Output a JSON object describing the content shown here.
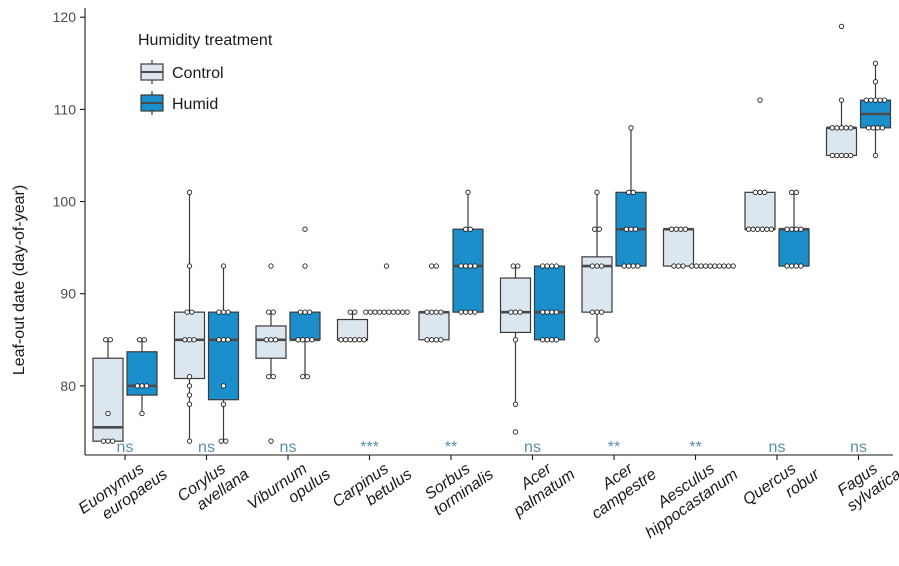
{
  "chart_data": {
    "type": "boxplot",
    "ylabel": "Leaf-out date (day-of-year)",
    "ylim": [
      72.5,
      121
    ],
    "yticks": [
      80,
      90,
      100,
      110,
      120
    ],
    "legend": {
      "title": "Humidity treatment",
      "position": "top-left",
      "items": [
        {
          "key": "control",
          "label": "Control",
          "color": "#dce6ee"
        },
        {
          "key": "humid",
          "label": "Humid",
          "color": "#1a8fcc"
        }
      ]
    },
    "colors": {
      "control": "#dce6ee",
      "humid": "#1a8fcc",
      "outline": "#3a3a3a",
      "median": "#4a4a4a",
      "significance": "#5b8fa8"
    },
    "categories": [
      {
        "line1": "Euonymus",
        "line2": "europaeus",
        "sig": "ns",
        "control": {
          "lower": 74,
          "q1": 74,
          "median": 75.5,
          "q3": 83,
          "upper": 85,
          "points": [
            74,
            74,
            74,
            77,
            85,
            85
          ]
        },
        "humid": {
          "lower": 77,
          "q1": 79,
          "median": 80,
          "q3": 83.7,
          "upper": 85,
          "points": [
            77,
            80,
            80,
            80,
            85,
            85
          ]
        }
      },
      {
        "line1": "Corylus",
        "line2": "avellana",
        "sig": "ns",
        "control": {
          "lower": 74,
          "q1": 80.8,
          "median": 85,
          "q3": 88,
          "upper": 101,
          "points": [
            74,
            78,
            79,
            80,
            81,
            85,
            85,
            85,
            88,
            88,
            93,
            101
          ]
        },
        "humid": {
          "lower": 74,
          "q1": 78.5,
          "median": 85,
          "q3": 88,
          "upper": 93,
          "points": [
            74,
            74,
            78,
            80,
            85,
            85,
            85,
            88,
            88,
            88,
            93
          ]
        }
      },
      {
        "line1": "Viburnum",
        "line2": "opulus",
        "sig": "ns",
        "control": {
          "lower": 81,
          "q1": 83,
          "median": 85,
          "q3": 86.5,
          "upper": 88,
          "points": [
            74,
            81,
            81,
            85,
            85,
            85,
            88,
            88,
            93
          ]
        },
        "humid": {
          "lower": 81,
          "q1": 85,
          "median": 85,
          "q3": 88,
          "upper": 88,
          "points": [
            81,
            81,
            85,
            85,
            85,
            85,
            88,
            88,
            88,
            93,
            97
          ]
        }
      },
      {
        "line1": "Carpinus",
        "line2": "betulus",
        "sig": "***",
        "control": {
          "lower": 85,
          "q1": 85,
          "median": 85,
          "q3": 87.2,
          "upper": 88,
          "points": [
            85,
            85,
            85,
            85,
            85,
            85,
            88,
            88
          ]
        },
        "humid": {
          "lower": 88,
          "q1": 88,
          "median": 88,
          "q3": 88,
          "upper": 88,
          "points": [
            88,
            88,
            88,
            88,
            88,
            88,
            88,
            88,
            88,
            88,
            93
          ]
        }
      },
      {
        "line1": "Sorbus",
        "line2": "torminalis",
        "sig": "**",
        "control": {
          "lower": 85,
          "q1": 85,
          "median": 88,
          "q3": 88,
          "upper": 88,
          "points": [
            85,
            85,
            85,
            85,
            88,
            88,
            88,
            88,
            93,
            93
          ]
        },
        "humid": {
          "lower": 88,
          "q1": 88,
          "median": 93,
          "q3": 97,
          "upper": 101,
          "points": [
            88,
            88,
            88,
            88,
            93,
            93,
            93,
            93,
            97,
            97,
            101
          ]
        }
      },
      {
        "line1": "Acer",
        "line2": "palmatum",
        "sig": "ns",
        "control": {
          "lower": 78,
          "q1": 85.8,
          "median": 88,
          "q3": 91.7,
          "upper": 93,
          "points": [
            75,
            78,
            85,
            88,
            88,
            88,
            93,
            93
          ]
        },
        "humid": {
          "lower": 85,
          "q1": 85,
          "median": 88,
          "q3": 93,
          "upper": 93,
          "points": [
            85,
            85,
            85,
            85,
            88,
            88,
            88,
            88,
            93,
            93,
            93,
            93
          ]
        }
      },
      {
        "line1": "Acer",
        "line2": "campestre",
        "sig": "**",
        "control": {
          "lower": 85,
          "q1": 88,
          "median": 93,
          "q3": 94,
          "upper": 101,
          "points": [
            85,
            88,
            88,
            88,
            93,
            93,
            93,
            97,
            97,
            101
          ]
        },
        "humid": {
          "lower": 93,
          "q1": 93,
          "median": 97,
          "q3": 101,
          "upper": 108,
          "points": [
            93,
            93,
            93,
            93,
            97,
            97,
            97,
            101,
            101,
            108
          ]
        }
      },
      {
        "line1": "Aesculus",
        "line2": "hippocastanum",
        "sig": "**",
        "control": {
          "lower": 93,
          "q1": 93,
          "median": 97,
          "q3": 97,
          "upper": 97,
          "points": [
            93,
            93,
            93,
            97,
            97,
            97,
            97
          ]
        },
        "humid": {
          "lower": 93,
          "q1": 93,
          "median": 93,
          "q3": 93,
          "upper": 93,
          "points": [
            93,
            93,
            93,
            93,
            93,
            93,
            93,
            93,
            93,
            93
          ]
        }
      },
      {
        "line1": "Quercus",
        "line2": "robur",
        "sig": "ns",
        "control": {
          "lower": 97,
          "q1": 97,
          "median": 97,
          "q3": 101,
          "upper": 101,
          "points": [
            97,
            97,
            97,
            97,
            97,
            97,
            101,
            101,
            101,
            111
          ]
        },
        "humid": {
          "lower": 93,
          "q1": 93,
          "median": 97,
          "q3": 97,
          "upper": 101,
          "points": [
            93,
            93,
            93,
            93,
            97,
            97,
            97,
            97,
            101,
            101
          ]
        }
      },
      {
        "line1": "Fagus",
        "line2": "sylvatica",
        "sig": "ns",
        "control": {
          "lower": 105,
          "q1": 105,
          "median": 108,
          "q3": 108,
          "upper": 111,
          "points": [
            105,
            105,
            105,
            105,
            105,
            108,
            108,
            108,
            108,
            108,
            111,
            119
          ]
        },
        "humid": {
          "lower": 105,
          "q1": 108,
          "median": 109.5,
          "q3": 111,
          "upper": 115,
          "points": [
            105,
            108,
            108,
            108,
            108,
            111,
            111,
            111,
            111,
            111,
            113,
            115
          ]
        }
      }
    ]
  }
}
